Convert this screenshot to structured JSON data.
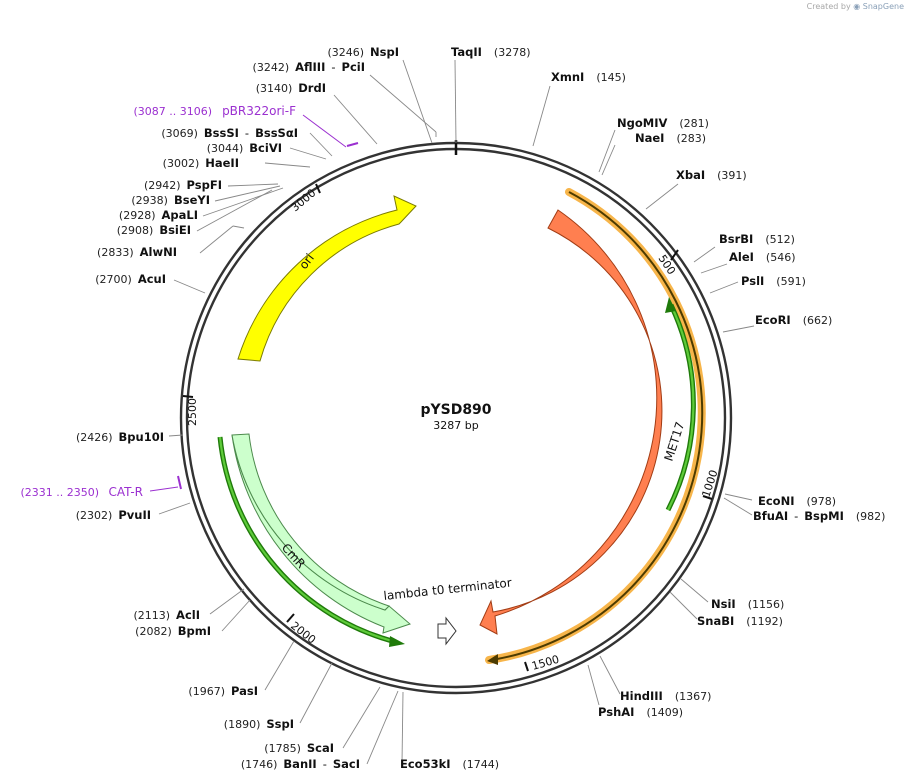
{
  "brand": {
    "created_by": "Created by",
    "app": "SnapGene"
  },
  "plasmid": {
    "name": "pYSD890",
    "size_label": "3287 bp",
    "length": 3287
  },
  "colors": {
    "ori": "#ffff00",
    "met17": "#ff7f50",
    "cmr": "#ccffcc",
    "primer": "#9b30d0",
    "arrow_green": "#2d9b12",
    "orange_hl": "#f7b54a"
  },
  "ticks": [
    "500",
    "1000",
    "1500",
    "2000",
    "2500",
    "3000"
  ],
  "features": [
    {
      "name": "ori",
      "label": "ori"
    },
    {
      "name": "met17",
      "label": "MET17"
    },
    {
      "name": "cmr",
      "label": "CmR"
    },
    {
      "name": "terminator",
      "label": "lambda t0 terminator"
    }
  ],
  "primers": [
    {
      "pos": "(3087 .. 3106)",
      "name": "pBR322ori-F"
    },
    {
      "pos": "(2331 .. 2350)",
      "name": "CAT-R"
    }
  ],
  "sites": [
    {
      "pos": "(3246)",
      "name": "NspI"
    },
    {
      "pos": "(3242)",
      "name": "AflIII",
      "name2": "PciI"
    },
    {
      "pos": "(3140)",
      "name": "DrdI"
    },
    {
      "pos": "(3069)",
      "name": "BssSI",
      "name2": "BssSαI"
    },
    {
      "pos": "(3044)",
      "name": "BciVI"
    },
    {
      "pos": "(3002)",
      "name": "HaeII"
    },
    {
      "pos": "(2942)",
      "name": "PspFI"
    },
    {
      "pos": "(2938)",
      "name": "BseYI"
    },
    {
      "pos": "(2928)",
      "name": "ApaLI"
    },
    {
      "pos": "(2908)",
      "name": "BsiEI"
    },
    {
      "pos": "(2833)",
      "name": "AlwNI"
    },
    {
      "pos": "(2700)",
      "name": "AcuI"
    },
    {
      "pos": "(2426)",
      "name": "Bpu10I"
    },
    {
      "pos": "(2302)",
      "name": "PvuII"
    },
    {
      "pos": "(2113)",
      "name": "AclI"
    },
    {
      "pos": "(2082)",
      "name": "BpmI"
    },
    {
      "pos": "(1967)",
      "name": "PasI"
    },
    {
      "pos": "(1890)",
      "name": "SspI"
    },
    {
      "pos": "(1785)",
      "name": "ScaI"
    },
    {
      "pos": "(1746)",
      "name": "BanII",
      "name2": "SacI"
    },
    {
      "pos": "(1744)",
      "name": "Eco53kI"
    },
    {
      "pos": "(3278)",
      "name": "TaqII"
    },
    {
      "pos": "(145)",
      "name": "XmnI"
    },
    {
      "pos": "(281)",
      "name": "NgoMIV"
    },
    {
      "pos": "(283)",
      "name": "NaeI"
    },
    {
      "pos": "(391)",
      "name": "XbaI"
    },
    {
      "pos": "(512)",
      "name": "BsrBI"
    },
    {
      "pos": "(546)",
      "name": "AleI"
    },
    {
      "pos": "(591)",
      "name": "PslI"
    },
    {
      "pos": "(662)",
      "name": "EcoRI"
    },
    {
      "pos": "(978)",
      "name": "EcoNI"
    },
    {
      "pos": "(982)",
      "name": "BfuAI",
      "name2": "BspMI"
    },
    {
      "pos": "(1156)",
      "name": "NsiI"
    },
    {
      "pos": "(1192)",
      "name": "SnaBI"
    },
    {
      "pos": "(1367)",
      "name": "HindIII"
    },
    {
      "pos": "(1409)",
      "name": "PshAI"
    }
  ]
}
